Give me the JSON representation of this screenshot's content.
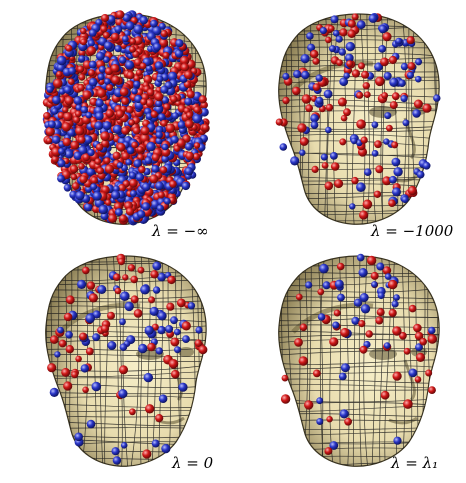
{
  "figure": {
    "panels": [
      {
        "caption": "λ = −∞"
      },
      {
        "caption": "λ = −1000"
      },
      {
        "caption": "λ = 0"
      },
      {
        "caption": "λ = λ₁"
      }
    ]
  },
  "colors": {
    "surface": "#e8dcae",
    "surface_shadow": "#8c7f55",
    "mesh": "#1a1a1a",
    "sphere_red": "#d01818",
    "sphere_blue": "#2a36c8"
  }
}
